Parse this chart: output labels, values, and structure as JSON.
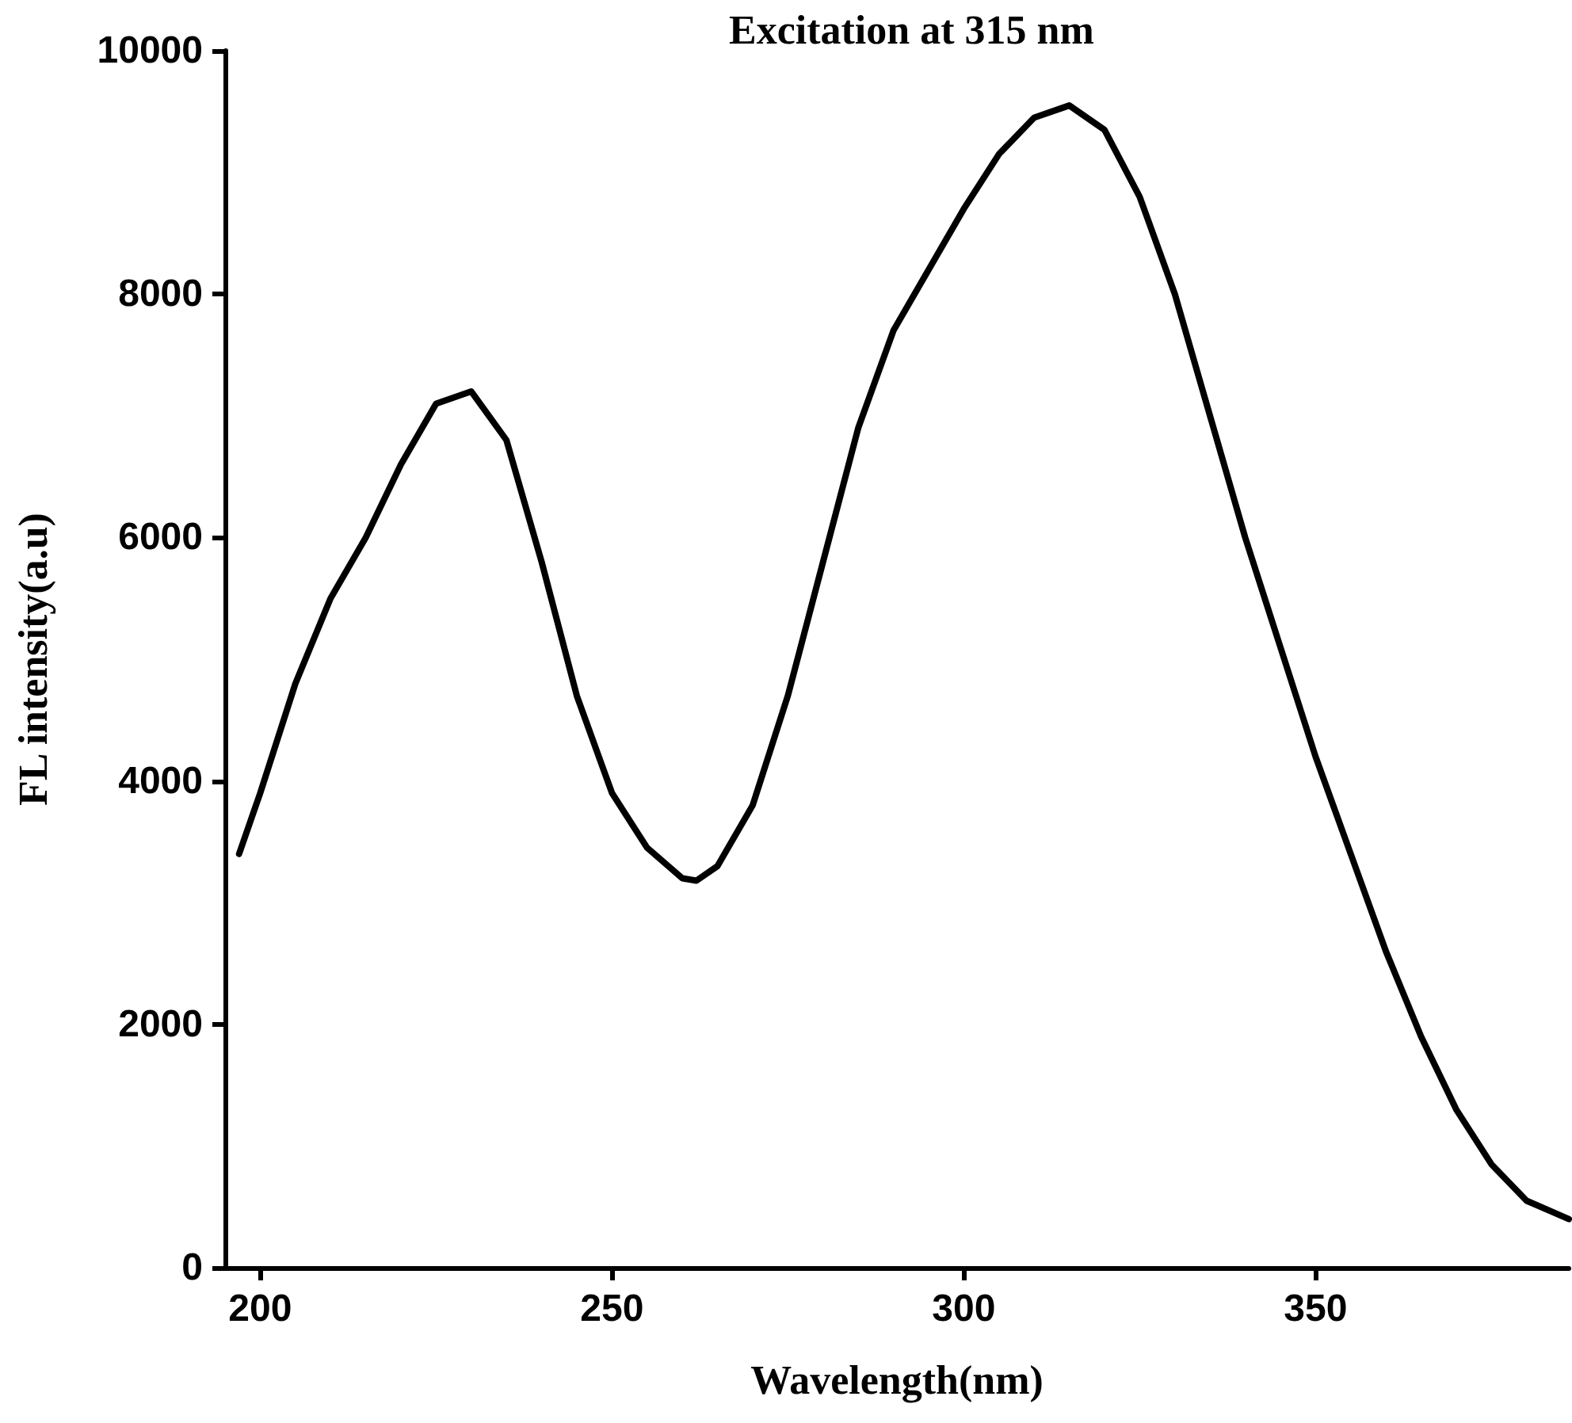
{
  "chart_data": {
    "type": "line",
    "xlabel": "Wavelength(nm)",
    "ylabel": "FL intensity(a.u)",
    "annotations": [
      "Excitation at 315 nm"
    ],
    "xlim": [
      195,
      386
    ],
    "xticks": [
      200,
      250,
      300,
      350
    ],
    "ylim": [
      0,
      10000
    ],
    "yticks": [
      0,
      2000,
      4000,
      6000,
      8000,
      10000
    ],
    "grid": false,
    "marker": "none",
    "line_style": "solid",
    "series": [
      {
        "color": "#000000",
        "x": [
          197,
          200,
          205,
          210,
          215,
          220,
          225,
          230,
          235,
          240,
          245,
          250,
          255,
          260,
          262,
          265,
          270,
          275,
          280,
          285,
          290,
          295,
          300,
          305,
          310,
          315,
          320,
          325,
          330,
          335,
          340,
          345,
          350,
          355,
          360,
          365,
          370,
          375,
          380,
          386
        ],
        "values": [
          3400,
          3900,
          4800,
          5500,
          6000,
          6600,
          7100,
          7200,
          6800,
          5800,
          4700,
          3900,
          3450,
          3200,
          3180,
          3300,
          3800,
          4700,
          5800,
          6900,
          7700,
          8200,
          8700,
          9150,
          9450,
          9550,
          9350,
          8800,
          8000,
          7000,
          6000,
          5100,
          4200,
          3400,
          2600,
          1900,
          1300,
          850,
          550,
          400
        ]
      }
    ]
  }
}
